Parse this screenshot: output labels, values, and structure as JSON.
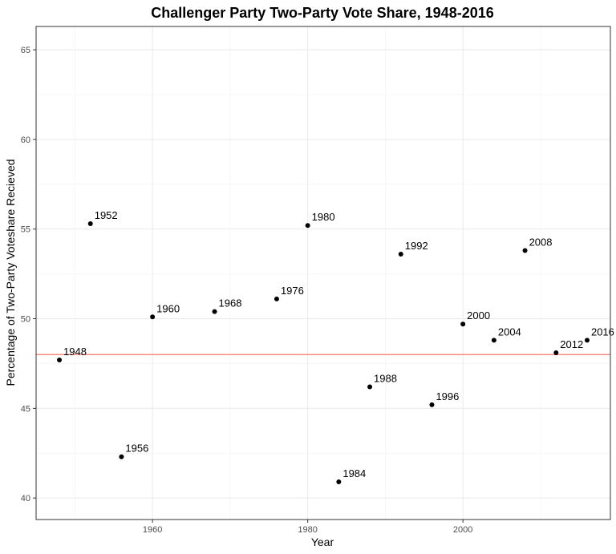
{
  "chart_data": {
    "type": "scatter",
    "title": "Challenger Party Two-Party Vote Share, 1948-2016",
    "xlabel": "Year",
    "ylabel": "Percentage of Two-Party Voteshare Recieved",
    "xlim": [
      1945,
      2019
    ],
    "ylim": [
      38.8,
      66.3
    ],
    "x_ticks": [
      1960,
      1980,
      2000
    ],
    "y_ticks": [
      40,
      45,
      50,
      55,
      60,
      65
    ],
    "grid": true,
    "reference_line": {
      "y": 48,
      "color": "#f8766d"
    },
    "point_color": "#000000",
    "points": [
      {
        "x": 1948,
        "y": 47.7,
        "label": "1948"
      },
      {
        "x": 1952,
        "y": 55.3,
        "label": "1952"
      },
      {
        "x": 1956,
        "y": 42.3,
        "label": "1956"
      },
      {
        "x": 1960,
        "y": 50.1,
        "label": "1960"
      },
      {
        "x": 1968,
        "y": 50.4,
        "label": "1968"
      },
      {
        "x": 1976,
        "y": 51.1,
        "label": "1976"
      },
      {
        "x": 1980,
        "y": 55.2,
        "label": "1980"
      },
      {
        "x": 1984,
        "y": 40.9,
        "label": "1984"
      },
      {
        "x": 1988,
        "y": 46.2,
        "label": "1988"
      },
      {
        "x": 1992,
        "y": 53.6,
        "label": "1992"
      },
      {
        "x": 1996,
        "y": 45.2,
        "label": "1996"
      },
      {
        "x": 2000,
        "y": 49.7,
        "label": "2000"
      },
      {
        "x": 2004,
        "y": 48.8,
        "label": "2004"
      },
      {
        "x": 2008,
        "y": 53.8,
        "label": "2008"
      },
      {
        "x": 2012,
        "y": 48.1,
        "label": "2012"
      },
      {
        "x": 2016,
        "y": 48.8,
        "label": "2016"
      }
    ]
  }
}
